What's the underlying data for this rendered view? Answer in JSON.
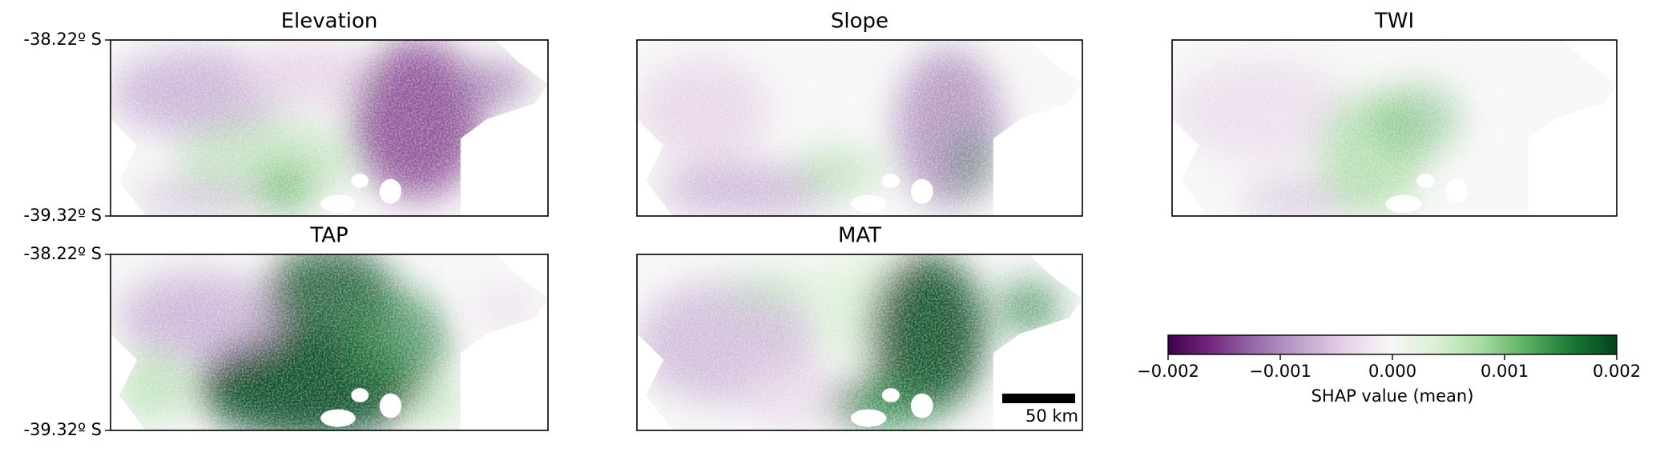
{
  "figure": {
    "panels": [
      {
        "title": "Elevation"
      },
      {
        "title": "Slope"
      },
      {
        "title": "TWI"
      },
      {
        "title": "TAP"
      },
      {
        "title": "MAT"
      }
    ],
    "ylim": [
      -39.32,
      -38.22
    ],
    "yticks": [
      {
        "value": -38.22,
        "label": "-38.22º S"
      },
      {
        "value": -39.32,
        "label": "-39.32º S"
      }
    ],
    "colorbar": {
      "label": "SHAP value (mean)",
      "lim": [
        -0.002,
        0.002
      ],
      "ticks": [
        {
          "value": -0.002,
          "label": "−0.002"
        },
        {
          "value": -0.001,
          "label": "−0.001"
        },
        {
          "value": 0,
          "label": "0.000"
        },
        {
          "value": 0.001,
          "label": "0.001"
        },
        {
          "value": 0.002,
          "label": "0.002"
        }
      ],
      "colors": [
        "#40004b",
        "#762a83",
        "#9970ab",
        "#c2a5cf",
        "#e7d4e8",
        "#f7f7f7",
        "#d9f0d3",
        "#a6dba0",
        "#5aae61",
        "#1b7837",
        "#00441b"
      ]
    },
    "scale_bar": {
      "label": "50 km"
    }
  }
}
